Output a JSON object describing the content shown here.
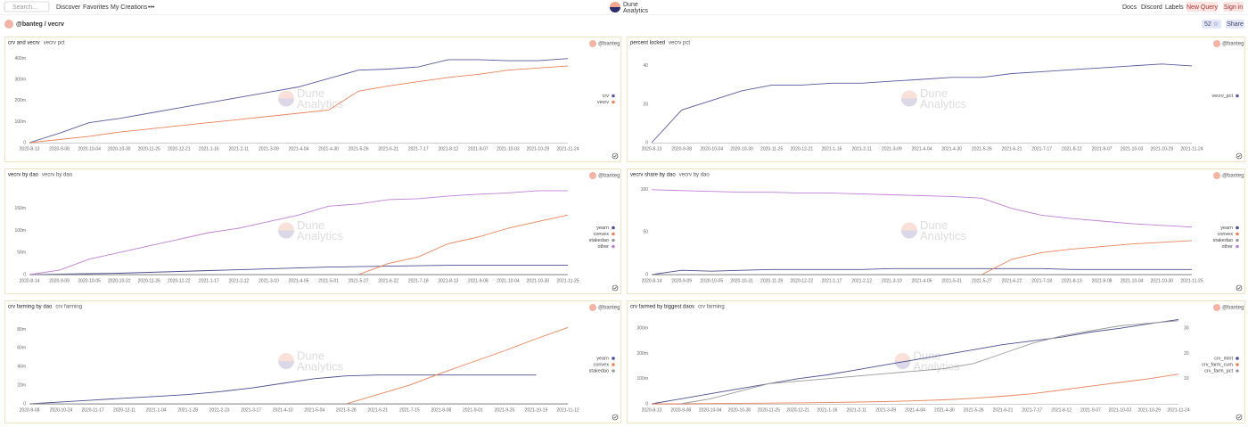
{
  "nav": {
    "search": "Search...",
    "links": [
      "Discover",
      "Favorites",
      "My Creations",
      "•••"
    ],
    "logo": [
      "Dune",
      "Analytics"
    ],
    "right": [
      "Docs",
      "Discord",
      "Labels"
    ],
    "new_query": "New Query",
    "sign_in": "Sign in"
  },
  "dashboard": {
    "title": "@banteg / vecrv",
    "stars": "52 ☆",
    "share": "Share"
  },
  "watermark": [
    "Dune",
    "Analytics"
  ],
  "chart_data": [
    {
      "type": "line",
      "title": "crv and vecrv",
      "subtitle": "vecrv pct",
      "author": "@banteg",
      "legend": "right",
      "categories": [
        "2020-8-13",
        "2020-9-08",
        "2020-10-04",
        "2020-10-30",
        "2020-11-25",
        "2020-12-21",
        "2021-1-16",
        "2021-2-11",
        "2021-3-09",
        "2021-4-04",
        "2021-4-30",
        "2021-5-26",
        "2021-6-21",
        "2021-7-17",
        "2021-8-12",
        "2021-9-07",
        "2021-10-03",
        "2021-10-29",
        "2021-11-24"
      ],
      "series": [
        {
          "name": "crv",
          "color": "#5a5a9e",
          "values": [
            0,
            45,
            95,
            115,
            140,
            165,
            190,
            215,
            240,
            265,
            305,
            345,
            350,
            360,
            395,
            395,
            390,
            390,
            400
          ]
        },
        {
          "name": "vecrv",
          "color": "#e8835a",
          "values": [
            0,
            15,
            30,
            50,
            65,
            80,
            95,
            110,
            125,
            140,
            155,
            245,
            270,
            290,
            310,
            325,
            345,
            355,
            365
          ]
        }
      ],
      "ylim": [
        0,
        420
      ],
      "yticks": [
        0,
        {
          "value": 100,
          "label": "100m"
        },
        {
          "value": 200,
          "label": "200m"
        },
        {
          "value": 300,
          "label": "300m"
        },
        {
          "value": 400,
          "label": "400m"
        }
      ]
    },
    {
      "type": "line",
      "title": "percent locked",
      "subtitle": "vecrv pct",
      "author": "@banteg",
      "legend": "right",
      "categories": [
        "2020-8-13",
        "2020-9-08",
        "2020-10-04",
        "2020-10-30",
        "2020-11-25",
        "2020-12-21",
        "2021-1-16",
        "2021-2-11",
        "2021-3-09",
        "2021-4-04",
        "2021-4-30",
        "2021-5-26",
        "2021-6-21",
        "2021-7-17",
        "2021-8-12",
        "2021-9-07",
        "2021-10-03",
        "2021-10-29",
        "2021-11-24"
      ],
      "series": [
        {
          "name": "vecrv_pct",
          "color": "#5a5a9e",
          "values": [
            0,
            17,
            22,
            27,
            30,
            30,
            31,
            31,
            32,
            33,
            34,
            34,
            36,
            37,
            38,
            39,
            40,
            41,
            40
          ]
        }
      ],
      "ylim": [
        0,
        46
      ],
      "yticks": [
        0,
        20,
        40
      ]
    },
    {
      "type": "line",
      "title": "vecrv by dao",
      "subtitle": "vecrv by dao",
      "author": "@banteg",
      "legend": "right",
      "categories": [
        "2020-8-14",
        "2020-9-09",
        "2020-10-05",
        "2020-10-31",
        "2020-11-26",
        "2020-12-22",
        "2021-1-17",
        "2021-2-12",
        "2021-3-10",
        "2021-4-05",
        "2021-5-01",
        "2021-5-27",
        "2021-6-22",
        "2021-7-18",
        "2021-8-13",
        "2021-9-08",
        "2021-10-04",
        "2021-10-30",
        "2021-11-25"
      ],
      "series": [
        {
          "name": "yearn",
          "color": "#4b4f8e",
          "values": [
            0,
            1,
            2,
            3,
            5,
            7,
            9,
            11,
            13,
            15,
            17,
            18,
            19,
            20,
            21,
            21,
            21,
            21,
            21
          ]
        },
        {
          "name": "convex",
          "color": "#e8835a",
          "values": [
            0,
            0,
            0,
            0,
            0,
            0,
            0,
            0,
            0,
            0,
            0,
            0,
            25,
            40,
            70,
            85,
            105,
            120,
            135
          ]
        },
        {
          "name": "stakedao",
          "color": "#9a9a9a",
          "values": [
            0,
            0,
            0,
            0,
            0,
            0,
            0,
            0,
            0,
            0,
            0,
            0,
            0,
            0,
            0,
            0,
            0,
            0,
            0
          ]
        },
        {
          "name": "other",
          "color": "#c07fd4",
          "values": [
            0,
            10,
            35,
            50,
            65,
            80,
            95,
            105,
            120,
            135,
            155,
            160,
            170,
            172,
            178,
            182,
            185,
            190,
            190
          ]
        }
      ],
      "ylim": [
        0,
        200
      ],
      "yticks": [
        0,
        {
          "value": 50,
          "label": "50m"
        },
        {
          "value": 100,
          "label": "100m"
        },
        {
          "value": 150,
          "label": "150m"
        }
      ]
    },
    {
      "type": "line",
      "title": "vecrv share by dao",
      "subtitle": "vecrv by dao",
      "author": "@banteg",
      "legend": "right",
      "categories": [
        "2020-8-14",
        "2020-9-09",
        "2020-10-05",
        "2020-10-31",
        "2020-11-26",
        "2020-12-22",
        "2021-1-17",
        "2021-2-12",
        "2021-3-10",
        "2021-4-05",
        "2021-5-01",
        "2021-5-27",
        "2021-6-22",
        "2021-7-18",
        "2021-8-13",
        "2021-9-08",
        "2021-10-04",
        "2021-10-30",
        "2021-11-25"
      ],
      "series": [
        {
          "name": "yearn",
          "color": "#4b4f8e",
          "values": [
            0,
            5,
            4,
            5,
            6,
            6,
            6,
            6,
            7,
            7,
            7,
            7,
            7,
            7,
            6,
            6,
            6,
            6,
            6
          ]
        },
        {
          "name": "convex",
          "color": "#e8835a",
          "values": [
            0,
            0,
            0,
            0,
            0,
            0,
            0,
            0,
            0,
            0,
            0,
            0,
            18,
            26,
            30,
            33,
            36,
            38,
            40
          ]
        },
        {
          "name": "stakedao",
          "color": "#9a9a9a",
          "values": [
            0,
            0,
            0,
            0,
            0,
            0,
            0,
            0,
            0,
            0,
            0,
            0,
            0,
            0,
            0,
            0,
            0,
            0,
            0
          ]
        },
        {
          "name": "other",
          "color": "#c07fd4",
          "values": [
            100,
            99,
            98,
            97,
            97,
            96,
            96,
            95,
            94,
            93,
            92,
            90,
            78,
            70,
            66,
            63,
            60,
            58,
            56
          ]
        }
      ],
      "ylim": [
        0,
        104
      ],
      "yticks": [
        0,
        50,
        100
      ]
    },
    {
      "type": "line",
      "title": "crv farming by dao",
      "subtitle": "crv farming",
      "author": "@banteg",
      "legend": "right",
      "categories": [
        "2020-9-08",
        "2020-10-24",
        "2020-11-17",
        "2020-12-11",
        "2021-1-04",
        "2021-1-28",
        "2021-2-23",
        "2021-3-17",
        "2021-4-10",
        "2021-5-04",
        "2021-5-28",
        "2021-6-21",
        "2021-7-15",
        "2021-8-08",
        "2021-9-01",
        "2021-9-25",
        "2021-10-19",
        "2021-11-12"
      ],
      "series": [
        {
          "name": "yearn",
          "color": "#4b4f8e",
          "values": [
            0,
            2,
            4,
            6,
            8,
            10,
            13,
            17,
            22,
            27,
            30,
            31,
            31,
            31,
            31,
            31,
            31,
            null
          ]
        },
        {
          "name": "convex",
          "color": "#e8835a",
          "values": [
            0,
            0,
            0,
            0,
            0,
            0,
            0,
            0,
            0,
            0,
            0,
            10,
            20,
            33,
            45,
            57,
            70,
            82
          ]
        },
        {
          "name": "stakedao",
          "color": "#9a9a9a",
          "values": [
            0,
            0,
            0,
            0,
            0,
            0,
            0,
            0,
            0,
            0,
            0,
            0,
            0,
            0,
            0,
            0,
            0,
            0
          ]
        }
      ],
      "ylim": [
        0,
        92
      ],
      "yticks": [
        0,
        {
          "value": 20,
          "label": "20m"
        },
        {
          "value": 40,
          "label": "40m"
        },
        {
          "value": 60,
          "label": "60m"
        },
        {
          "value": 80,
          "label": "80m"
        }
      ]
    },
    {
      "type": "line",
      "title": "crv farmed by biggest daos",
      "subtitle": "crv farming",
      "author": "@banteg",
      "legend": "right",
      "categories": [
        "2020-8-13",
        "2020-9-08",
        "2020-10-04",
        "2020-10-30",
        "2020-11-25",
        "2020-12-21",
        "2021-1-16",
        "2021-2-11",
        "2021-3-09",
        "2021-4-04",
        "2021-4-30",
        "2021-5-26",
        "2021-6-21",
        "2021-7-17",
        "2021-8-12",
        "2021-9-07",
        "2021-10-03",
        "2021-10-29",
        "2021-11-24"
      ],
      "series": [
        {
          "name": "crv_mint",
          "color": "#4b4f8e",
          "values": [
            0,
            20,
            40,
            60,
            80,
            100,
            115,
            135,
            155,
            175,
            195,
            215,
            235,
            250,
            265,
            285,
            300,
            318,
            335
          ]
        },
        {
          "name": "crv_farm_cum",
          "color": "#e8835a",
          "values": [
            0,
            0,
            1,
            2,
            3,
            4,
            5,
            7,
            9,
            12,
            16,
            22,
            30,
            40,
            55,
            70,
            85,
            100,
            118
          ]
        },
        {
          "name": "crv_farm_pct",
          "color": "#9a9a9a",
          "axis": "y2",
          "values": [
            null,
            0,
            2,
            5,
            8,
            9,
            10,
            11,
            12,
            13,
            14,
            16,
            20,
            24,
            27,
            29,
            31,
            32,
            33
          ]
        }
      ],
      "ylim": [
        0,
        340
      ],
      "yticks": [
        0,
        {
          "value": 100,
          "label": "100m"
        },
        {
          "value": 200,
          "label": "200m"
        },
        {
          "value": 300,
          "label": "300m"
        }
      ],
      "y2lim": [
        0,
        34
      ],
      "y2ticks": [
        10,
        20,
        30
      ]
    }
  ]
}
